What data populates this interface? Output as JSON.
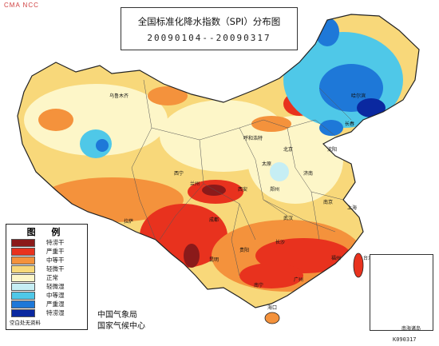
{
  "corner_mark": "CMA NCC",
  "title": {
    "main": "全国标准化降水指数（SPI）分布图",
    "date_range": "20090104--20090317"
  },
  "legend": {
    "title": "图 例",
    "items": [
      {
        "label": "特涝干",
        "color": "#8b1a1a"
      },
      {
        "label": "严重干",
        "color": "#e8321e"
      },
      {
        "label": "中等干",
        "color": "#f4923c"
      },
      {
        "label": "轻微干",
        "color": "#f8d87a"
      },
      {
        "label": "正常",
        "color": "#fdf6c8"
      },
      {
        "label": "轻微湿",
        "color": "#c6eef4"
      },
      {
        "label": "中等湿",
        "color": "#4fc8e8"
      },
      {
        "label": "严重湿",
        "color": "#1e78d8"
      },
      {
        "label": "特涝湿",
        "color": "#0a28a0"
      }
    ],
    "note": "空白处无资料"
  },
  "source": {
    "line1": "中国气象局",
    "line2": "国家气候中心"
  },
  "inset_label": "南海诸岛",
  "bottom_code": "K090317",
  "place_labels": [
    {
      "id": "wulumuqi",
      "text": "乌鲁木齐"
    },
    {
      "id": "huhehaote",
      "text": "呼和浩特"
    },
    {
      "id": "beijing",
      "text": "北京"
    },
    {
      "id": "shenyang",
      "text": "沈阳"
    },
    {
      "id": "haerbin",
      "text": "哈尔滨"
    },
    {
      "id": "lasa",
      "text": "拉萨"
    },
    {
      "id": "xining",
      "text": "西宁"
    },
    {
      "id": "lanzhou",
      "text": "兰州"
    },
    {
      "id": "chengdu",
      "text": "成都"
    },
    {
      "id": "kunming",
      "text": "昆明"
    },
    {
      "id": "guiyang",
      "text": "贵阳"
    },
    {
      "id": "nanning",
      "text": "南宁"
    },
    {
      "id": "guangzhou",
      "text": "广州"
    },
    {
      "id": "fuzhou",
      "text": "福州"
    },
    {
      "id": "taibei",
      "text": "台北"
    },
    {
      "id": "shanghai",
      "text": "上海"
    },
    {
      "id": "nanjing",
      "text": "南京"
    },
    {
      "id": "wuhan",
      "text": "武汉"
    },
    {
      "id": "changsha",
      "text": "长沙"
    },
    {
      "id": "haikou",
      "text": "海口"
    },
    {
      "id": "xian",
      "text": "西安"
    },
    {
      "id": "zhengzhou",
      "text": "郑州"
    },
    {
      "id": "jinan",
      "text": "济南"
    },
    {
      "id": "taiyuan",
      "text": "太原"
    },
    {
      "id": "changchun",
      "text": "长春"
    }
  ]
}
